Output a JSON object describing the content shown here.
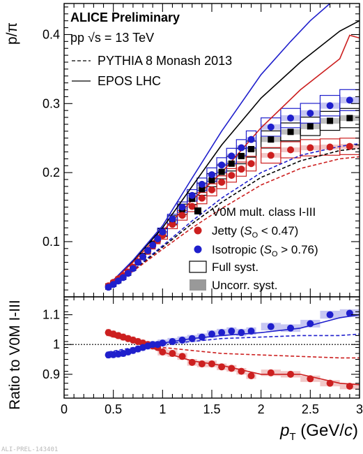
{
  "chart_data": [
    {
      "panel": "top",
      "type": "scatter",
      "ylabel": "p/π",
      "xlim": [
        0,
        3
      ],
      "ylim": [
        0.02,
        0.445
      ],
      "yticks": [
        0.1,
        0.2,
        0.3,
        0.4
      ],
      "ytick_labels": [
        "0.1",
        "0.2",
        "0.3",
        "0.4"
      ],
      "grid": false,
      "header": "ALICE Preliminary",
      "energy_label": "pp √s = 13 TeV",
      "model_legend": [
        {
          "style": "dashed",
          "label": "PYTHIA 8 Monash 2013"
        },
        {
          "style": "solid",
          "label": "EPOS LHC"
        }
      ],
      "legend": [
        {
          "marker": "square",
          "color": "#000000",
          "label": "V0M mult. class I-III"
        },
        {
          "marker": "circle",
          "color": "#cc1f1f",
          "label": "Jetty (",
          "label_var": "S",
          "label_sub": "O",
          "label_tail": " < 0.47)"
        },
        {
          "marker": "circle",
          "color": "#1f1fcc",
          "label": "Isotropic (",
          "label_var": "S",
          "label_sub": "O",
          "label_tail": " > 0.76)"
        },
        {
          "marker": "open-box",
          "color": "#000000",
          "label": "Full syst."
        },
        {
          "marker": "filled-box",
          "color": "#999999",
          "label": "Uncorr. syst."
        }
      ],
      "series": [
        {
          "name": "V0M mult. class I-III",
          "color": "#000000",
          "marker": "square",
          "x": [
            0.45,
            0.5,
            0.55,
            0.6,
            0.65,
            0.7,
            0.75,
            0.8,
            0.85,
            0.9,
            0.95,
            1.0,
            1.1,
            1.2,
            1.3,
            1.4,
            1.5,
            1.6,
            1.7,
            1.8,
            1.9,
            2.1,
            2.3,
            2.5,
            2.7,
            2.9
          ],
          "y": [
            0.035,
            0.039,
            0.044,
            0.049,
            0.055,
            0.062,
            0.071,
            0.079,
            0.087,
            0.096,
            0.104,
            0.113,
            0.131,
            0.147,
            0.162,
            0.176,
            0.189,
            0.201,
            0.213,
            0.224,
            0.234,
            0.248,
            0.259,
            0.267,
            0.275,
            0.279
          ]
        },
        {
          "name": "Jetty (S_O < 0.47)",
          "color": "#cc1f1f",
          "marker": "circle",
          "x": [
            0.45,
            0.5,
            0.55,
            0.6,
            0.65,
            0.7,
            0.75,
            0.8,
            0.85,
            0.9,
            0.95,
            1.0,
            1.1,
            1.2,
            1.3,
            1.4,
            1.5,
            1.6,
            1.7,
            1.8,
            1.9,
            2.1,
            2.3,
            2.5,
            2.7,
            2.9
          ],
          "y": [
            0.036,
            0.041,
            0.046,
            0.051,
            0.056,
            0.063,
            0.071,
            0.078,
            0.086,
            0.094,
            0.102,
            0.109,
            0.125,
            0.138,
            0.151,
            0.163,
            0.175,
            0.186,
            0.196,
            0.205,
            0.213,
            0.225,
            0.233,
            0.236,
            0.237,
            0.238
          ]
        },
        {
          "name": "Isotropic (S_O > 0.76)",
          "color": "#1f1fcc",
          "marker": "circle",
          "x": [
            0.45,
            0.5,
            0.55,
            0.6,
            0.65,
            0.7,
            0.75,
            0.8,
            0.85,
            0.9,
            0.95,
            1.0,
            1.1,
            1.2,
            1.3,
            1.4,
            1.5,
            1.6,
            1.7,
            1.8,
            1.9,
            2.1,
            2.3,
            2.5,
            2.7,
            2.9
          ],
          "y": [
            0.034,
            0.038,
            0.043,
            0.048,
            0.054,
            0.061,
            0.07,
            0.078,
            0.087,
            0.095,
            0.104,
            0.114,
            0.133,
            0.15,
            0.167,
            0.183,
            0.197,
            0.211,
            0.224,
            0.236,
            0.248,
            0.266,
            0.279,
            0.286,
            0.297,
            0.305
          ]
        },
        {
          "name": "",
          "model": "EPOS LHC",
          "group": "V0M",
          "line": "solid",
          "color": "#000000",
          "x": [
            0.45,
            0.7,
            1.0,
            1.3,
            1.6,
            2.0,
            2.4,
            2.8,
            3.0
          ],
          "y": [
            0.037,
            0.072,
            0.12,
            0.18,
            0.24,
            0.308,
            0.36,
            0.405,
            0.42
          ]
        },
        {
          "name": "",
          "model": "EPOS LHC",
          "group": "Jetty",
          "line": "solid",
          "color": "#cc1f1f",
          "x": [
            0.45,
            0.7,
            1.0,
            1.3,
            1.6,
            2.0,
            2.4,
            2.8,
            2.9,
            3.0
          ],
          "y": [
            0.037,
            0.07,
            0.115,
            0.16,
            0.2,
            0.265,
            0.32,
            0.365,
            0.399,
            0.395
          ]
        },
        {
          "name": "",
          "model": "EPOS LHC",
          "group": "Isotropic",
          "line": "solid",
          "color": "#1f1fcc",
          "x": [
            0.45,
            0.7,
            1.0,
            1.3,
            1.6,
            2.0,
            2.3,
            2.5,
            2.7
          ],
          "y": [
            0.037,
            0.073,
            0.123,
            0.192,
            0.26,
            0.342,
            0.39,
            0.42,
            0.445
          ]
        },
        {
          "name": "",
          "model": "PYTHIA 8 Monash 2013",
          "group": "V0M",
          "line": "dashed",
          "color": "#000000",
          "x": [
            0.45,
            0.7,
            1.0,
            1.3,
            1.6,
            2.0,
            2.4,
            2.8,
            3.0
          ],
          "y": [
            0.032,
            0.058,
            0.092,
            0.126,
            0.157,
            0.193,
            0.217,
            0.232,
            0.235
          ]
        },
        {
          "name": "",
          "model": "PYTHIA 8 Monash 2013",
          "group": "Jetty",
          "line": "dashed",
          "color": "#cc1f1f",
          "x": [
            0.45,
            0.7,
            1.0,
            1.3,
            1.6,
            2.0,
            2.4,
            2.8,
            3.0
          ],
          "y": [
            0.033,
            0.057,
            0.089,
            0.12,
            0.148,
            0.182,
            0.206,
            0.22,
            0.223
          ]
        },
        {
          "name": "",
          "model": "PYTHIA 8 Monash 2013",
          "group": "Isotropic",
          "line": "dashed",
          "color": "#1f1fcc",
          "x": [
            0.45,
            0.7,
            1.0,
            1.3,
            1.6,
            2.0,
            2.4,
            2.8,
            3.0
          ],
          "y": [
            0.031,
            0.059,
            0.094,
            0.13,
            0.163,
            0.2,
            0.225,
            0.238,
            0.242
          ]
        }
      ]
    },
    {
      "panel": "bottom",
      "type": "scatter",
      "ylabel": "Ratio to V0M I-III",
      "xlabel_var": "p",
      "xlabel_sub": "T",
      "xlabel_unit_open": " (GeV/",
      "xlabel_unit_var": "c",
      "xlabel_unit_close": ")",
      "xlim": [
        0,
        3
      ],
      "ylim": [
        0.82,
        1.16
      ],
      "yticks": [
        0.9,
        1.0,
        1.1
      ],
      "ytick_labels": [
        "0.9",
        "1",
        "1.1"
      ],
      "xticks": [
        0,
        0.5,
        1,
        1.5,
        2,
        2.5,
        3
      ],
      "xtick_labels": [
        "0",
        "0.5",
        "1",
        "1.5",
        "2",
        "2.5",
        "3"
      ],
      "reference_line": 1.0,
      "grid": false,
      "series": [
        {
          "name": "Jetty / V0M",
          "color": "#cc1f1f",
          "marker": "circle",
          "x": [
            0.45,
            0.5,
            0.55,
            0.6,
            0.65,
            0.7,
            0.75,
            0.8,
            0.85,
            0.9,
            0.95,
            1.0,
            1.1,
            1.2,
            1.3,
            1.4,
            1.5,
            1.6,
            1.7,
            1.8,
            1.9,
            2.1,
            2.3,
            2.5,
            2.7,
            2.9
          ],
          "y": [
            1.04,
            1.035,
            1.03,
            1.025,
            1.02,
            1.015,
            1.01,
            1.005,
            1.0,
            0.995,
            0.99,
            0.975,
            0.97,
            0.96,
            0.94,
            0.935,
            0.935,
            0.925,
            0.92,
            0.91,
            0.895,
            0.905,
            0.9,
            0.885,
            0.87,
            0.86
          ]
        },
        {
          "name": "Isotropic / V0M",
          "color": "#1f1fcc",
          "marker": "circle",
          "x": [
            0.45,
            0.5,
            0.55,
            0.6,
            0.65,
            0.7,
            0.75,
            0.8,
            0.85,
            0.9,
            0.95,
            1.0,
            1.1,
            1.2,
            1.3,
            1.4,
            1.5,
            1.6,
            1.7,
            1.8,
            1.9,
            2.1,
            2.3,
            2.5,
            2.7,
            2.9
          ],
          "y": [
            0.965,
            0.966,
            0.968,
            0.97,
            0.975,
            0.98,
            0.985,
            0.99,
            0.995,
            1.0,
            1.0,
            1.005,
            1.01,
            1.015,
            1.02,
            1.025,
            1.035,
            1.04,
            1.045,
            1.04,
            1.045,
            1.06,
            1.055,
            1.07,
            1.1,
            1.105
          ]
        },
        {
          "name": "",
          "model": "EPOS LHC",
          "group": "Jetty",
          "line": "solid",
          "color": "#cc1f1f",
          "x": [
            0.45,
            0.8,
            1.0,
            1.3,
            1.6,
            2.0,
            2.4,
            2.8,
            3.0
          ],
          "y": [
            1.04,
            1.0,
            0.975,
            0.945,
            0.93,
            0.9,
            0.9,
            0.87,
            0.865
          ]
        },
        {
          "name": "",
          "model": "EPOS LHC",
          "group": "Isotropic",
          "line": "solid",
          "color": "#1f1fcc",
          "x": [
            0.45,
            0.8,
            1.0,
            1.3,
            1.6,
            2.0,
            2.4,
            2.8,
            3.0
          ],
          "y": [
            0.965,
            0.99,
            1.005,
            1.02,
            1.03,
            1.04,
            1.055,
            1.09,
            1.1
          ]
        },
        {
          "name": "",
          "model": "PYTHIA 8 Monash 2013",
          "group": "Jetty",
          "line": "dashed",
          "color": "#cc1f1f",
          "x": [
            0.45,
            0.8,
            1.0,
            1.3,
            1.6,
            2.0,
            2.4,
            2.8,
            3.0
          ],
          "y": [
            1.03,
            1.0,
            0.99,
            0.98,
            0.97,
            0.965,
            0.96,
            0.955,
            0.955
          ]
        },
        {
          "name": "",
          "model": "PYTHIA 8 Monash 2013",
          "group": "Isotropic",
          "line": "dashed",
          "color": "#1f1fcc",
          "x": [
            0.45,
            0.8,
            1.0,
            1.3,
            1.6,
            2.0,
            2.4,
            2.8,
            3.0
          ],
          "y": [
            0.975,
            0.995,
            1.003,
            1.01,
            1.02,
            1.025,
            1.03,
            1.03,
            1.035
          ]
        }
      ]
    }
  ],
  "watermark": "ALI-PREL-143401"
}
